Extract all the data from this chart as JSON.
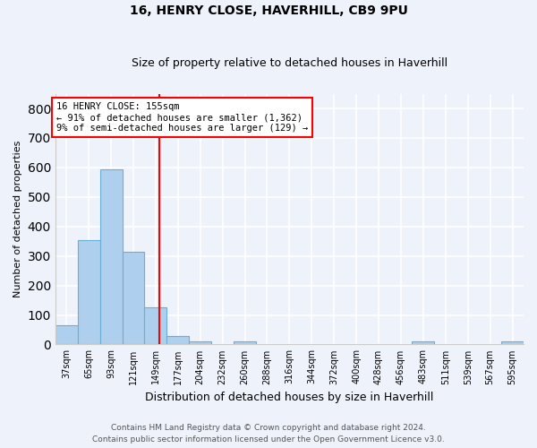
{
  "title1": "16, HENRY CLOSE, HAVERHILL, CB9 9PU",
  "title2": "Size of property relative to detached houses in Haverhill",
  "xlabel": "Distribution of detached houses by size in Haverhill",
  "ylabel": "Number of detached properties",
  "bin_labels": [
    "37sqm",
    "65sqm",
    "93sqm",
    "121sqm",
    "149sqm",
    "177sqm",
    "204sqm",
    "232sqm",
    "260sqm",
    "288sqm",
    "316sqm",
    "344sqm",
    "372sqm",
    "400sqm",
    "428sqm",
    "456sqm",
    "483sqm",
    "511sqm",
    "539sqm",
    "567sqm",
    "595sqm"
  ],
  "bar_heights": [
    65,
    355,
    595,
    315,
    125,
    30,
    10,
    0,
    10,
    0,
    0,
    0,
    0,
    0,
    0,
    0,
    10,
    0,
    0,
    0,
    10
  ],
  "bar_color": "#aed0ee",
  "bar_edge_color": "#6aaed6",
  "background_color": "#eef2fb",
  "grid_color": "#ffffff",
  "vline_x": 4.18,
  "vline_color": "red",
  "annotation_text": "16 HENRY CLOSE: 155sqm\n← 91% of detached houses are smaller (1,362)\n9% of semi-detached houses are larger (129) →",
  "annotation_box_color": "white",
  "annotation_box_edge": "red",
  "footer1": "Contains HM Land Registry data © Crown copyright and database right 2024.",
  "footer2": "Contains public sector information licensed under the Open Government Licence v3.0.",
  "ylim": [
    0,
    850
  ],
  "yticks": [
    0,
    100,
    200,
    300,
    400,
    500,
    600,
    700,
    800
  ]
}
